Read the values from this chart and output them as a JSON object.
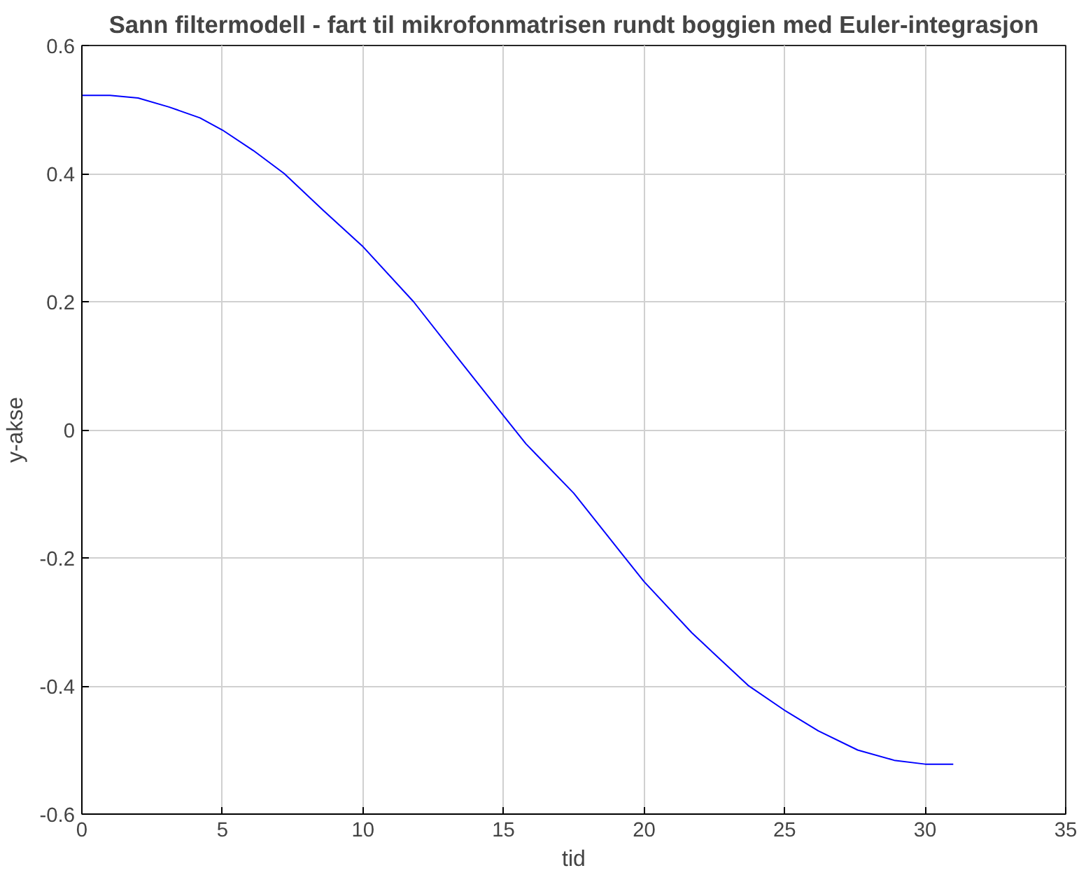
{
  "chart_data": {
    "type": "line",
    "title": "Sann filtermodell - fart til mikrofonmatrisen rundt boggien med Euler-integrasjon",
    "xlabel": "tid",
    "ylabel": "y-akse",
    "x": [
      0,
      1,
      2,
      3.1,
      4.2,
      5,
      6.1,
      7.2,
      8.6,
      10,
      11.8,
      13.5,
      15,
      15.8,
      17.5,
      19.2,
      20,
      21.7,
      23.7,
      25,
      26.2,
      27.6,
      28.9,
      30,
      31
    ],
    "series": [
      {
        "color": "#0000ff",
        "values": [
          0.522,
          0.522,
          0.518,
          0.504,
          0.487,
          0.468,
          0.436,
          0.4,
          0.342,
          0.286,
          0.2,
          0.105,
          0.022,
          -0.022,
          -0.099,
          -0.193,
          -0.237,
          -0.317,
          -0.399,
          -0.438,
          -0.47,
          -0.5,
          -0.516,
          -0.522,
          -0.522
        ]
      }
    ],
    "xlim": [
      0,
      35
    ],
    "ylim": [
      -0.6,
      0.6
    ],
    "xticks": [
      0,
      5,
      10,
      15,
      20,
      25,
      30,
      35
    ],
    "yticks": [
      -0.6,
      -0.4,
      -0.2,
      0,
      0.2,
      0.4,
      0.6
    ],
    "grid": true,
    "line_style": "solid"
  }
}
